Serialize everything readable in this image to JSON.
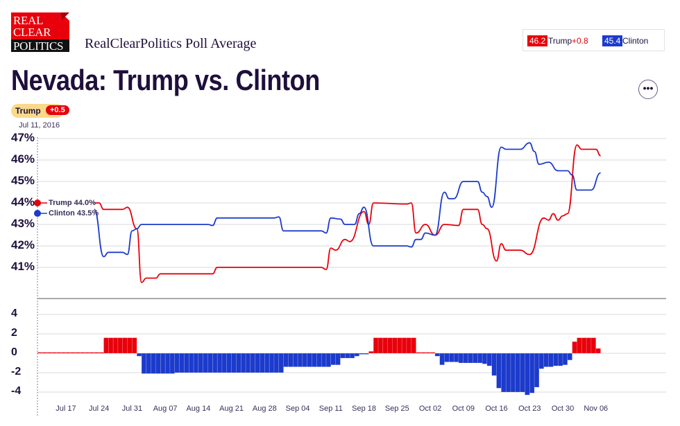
{
  "header": {
    "logo_text": [
      "REAL",
      "CLEAR",
      "POLITICS"
    ],
    "subtitle": "RealClearPolitics Poll Average",
    "title": "Nevada: Trump vs. Clinton",
    "more_label": "•••"
  },
  "legend": {
    "trump": {
      "value": "46.2",
      "name": "Trump",
      "lead": "+0.8"
    },
    "clinton": {
      "value": "45.4",
      "name": "Clinton"
    }
  },
  "start_badge": {
    "leader": "Trump",
    "lead": "+0.5",
    "date": "Jul 11, 2016"
  },
  "start_labels": {
    "trump": "Trump 44.0%",
    "clinton": "Clinton 43.5%"
  },
  "colors": {
    "trump": "#e8000b",
    "clinton": "#1c3bcc",
    "text": "#1e0f3c",
    "grid": "#e6e6e6"
  },
  "chart_data": [
    {
      "type": "line",
      "ylabel": "",
      "yticks": [
        "47%",
        "46%",
        "45%",
        "44%",
        "43%",
        "42%",
        "41%"
      ],
      "ylim": [
        40,
        47
      ],
      "xlim": [
        "2016-07-11",
        "2016-11-07"
      ],
      "grid": true,
      "series": [
        {
          "name": "Trump",
          "color": "#e8000b",
          "points": [
            [
              "2016-07-23",
              44.0
            ],
            [
              "2016-07-24",
              44.0
            ],
            [
              "2016-07-25",
              43.7
            ],
            [
              "2016-07-29",
              43.7
            ],
            [
              "2016-07-30",
              43.8
            ],
            [
              "2016-08-01",
              42.8
            ],
            [
              "2016-08-02",
              40.3
            ],
            [
              "2016-08-03",
              40.5
            ],
            [
              "2016-08-05",
              40.5
            ],
            [
              "2016-08-06",
              40.7
            ],
            [
              "2016-08-17",
              40.7
            ],
            [
              "2016-08-18",
              41.0
            ],
            [
              "2016-09-09",
              41.0
            ],
            [
              "2016-09-10",
              40.9
            ],
            [
              "2016-09-11",
              41.9
            ],
            [
              "2016-09-12",
              41.8
            ],
            [
              "2016-09-14",
              42.3
            ],
            [
              "2016-09-15",
              42.2
            ],
            [
              "2016-09-18",
              43.6
            ],
            [
              "2016-09-19",
              43.0
            ],
            [
              "2016-09-20",
              44.0
            ],
            [
              "2016-09-27",
              43.95
            ],
            [
              "2016-09-28",
              44.0
            ],
            [
              "2016-09-29",
              42.6
            ],
            [
              "2016-10-01",
              43.0
            ],
            [
              "2016-10-03",
              42.5
            ],
            [
              "2016-10-05",
              43.0
            ],
            [
              "2016-10-08",
              42.95
            ],
            [
              "2016-10-09",
              43.7
            ],
            [
              "2016-10-12",
              43.7
            ],
            [
              "2016-10-13",
              43.0
            ],
            [
              "2016-10-14",
              42.8
            ],
            [
              "2016-10-16",
              41.3
            ],
            [
              "2016-10-17",
              42.1
            ],
            [
              "2016-10-18",
              41.8
            ],
            [
              "2016-10-21",
              41.8
            ],
            [
              "2016-10-23",
              41.6
            ],
            [
              "2016-10-26",
              43.3
            ],
            [
              "2016-10-27",
              43.2
            ],
            [
              "2016-10-28",
              43.5
            ],
            [
              "2016-10-29",
              43.2
            ],
            [
              "2016-10-30",
              43.4
            ],
            [
              "2016-10-31",
              43.5
            ],
            [
              "2016-11-02",
              46.7
            ],
            [
              "2016-11-03",
              46.5
            ],
            [
              "2016-11-06",
              46.5
            ],
            [
              "2016-11-07",
              46.2
            ]
          ]
        },
        {
          "name": "Clinton",
          "color": "#1c3bcc",
          "points": [
            [
              "2016-07-23",
              43.7
            ],
            [
              "2016-07-25",
              41.5
            ],
            [
              "2016-07-26",
              41.7
            ],
            [
              "2016-07-29",
              41.7
            ],
            [
              "2016-07-30",
              41.6
            ],
            [
              "2016-07-31",
              42.7
            ],
            [
              "2016-08-01",
              42.8
            ],
            [
              "2016-08-02",
              43.0
            ],
            [
              "2016-08-16",
              43.0
            ],
            [
              "2016-08-17",
              42.95
            ],
            [
              "2016-08-18",
              43.3
            ],
            [
              "2016-08-30",
              43.3
            ],
            [
              "2016-08-31",
              43.35
            ],
            [
              "2016-09-01",
              42.7
            ],
            [
              "2016-09-09",
              42.7
            ],
            [
              "2016-09-10",
              42.6
            ],
            [
              "2016-09-11",
              43.3
            ],
            [
              "2016-09-13",
              43.25
            ],
            [
              "2016-09-14",
              43.0
            ],
            [
              "2016-09-16",
              43.0
            ],
            [
              "2016-09-17",
              43.5
            ],
            [
              "2016-09-18",
              43.8
            ],
            [
              "2016-09-20",
              42.0
            ],
            [
              "2016-09-27",
              42.0
            ],
            [
              "2016-09-28",
              41.95
            ],
            [
              "2016-09-29",
              42.3
            ],
            [
              "2016-09-30",
              42.3
            ],
            [
              "2016-10-01",
              42.6
            ],
            [
              "2016-10-03",
              42.5
            ],
            [
              "2016-10-05",
              44.5
            ],
            [
              "2016-10-06",
              44.2
            ],
            [
              "2016-10-07",
              44.2
            ],
            [
              "2016-10-09",
              45.0
            ],
            [
              "2016-10-12",
              45.0
            ],
            [
              "2016-10-13",
              44.5
            ],
            [
              "2016-10-14",
              44.3
            ],
            [
              "2016-10-15",
              43.8
            ],
            [
              "2016-10-17",
              46.6
            ],
            [
              "2016-10-18",
              46.5
            ],
            [
              "2016-10-21",
              46.5
            ],
            [
              "2016-10-23",
              46.8
            ],
            [
              "2016-10-24",
              46.4
            ],
            [
              "2016-10-25",
              45.8
            ],
            [
              "2016-10-27",
              45.9
            ],
            [
              "2016-10-29",
              45.5
            ],
            [
              "2016-10-31",
              45.5
            ],
            [
              "2016-11-01",
              45.3
            ],
            [
              "2016-11-02",
              44.6
            ],
            [
              "2016-11-05",
              44.6
            ],
            [
              "2016-11-07",
              45.4
            ]
          ]
        }
      ]
    },
    {
      "type": "bar",
      "ylabel": "",
      "yticks": [
        "4",
        "2",
        "0",
        "-2",
        "-4"
      ],
      "ylim": [
        -4.5,
        4.5
      ],
      "xticks": [
        "Jul 17",
        "Jul 24",
        "Jul 31",
        "Aug 07",
        "Aug 14",
        "Aug 21",
        "Aug 28",
        "Sep 04",
        "Sep 11",
        "Sep 18",
        "Sep 25",
        "Oct 02",
        "Oct 09",
        "Oct 16",
        "Oct 23",
        "Oct 30",
        "Nov 06"
      ],
      "xtick_dates": [
        "2016-07-17",
        "2016-07-24",
        "2016-07-31",
        "2016-08-07",
        "2016-08-14",
        "2016-08-21",
        "2016-08-28",
        "2016-09-04",
        "2016-09-11",
        "2016-09-18",
        "2016-09-25",
        "2016-10-02",
        "2016-10-09",
        "2016-10-16",
        "2016-10-23",
        "2016-10-30",
        "2016-11-06"
      ],
      "grid": true,
      "spread_steps": [
        [
          "2016-07-11",
          "2016-07-24",
          0.1
        ],
        [
          "2016-07-25",
          "2016-07-31",
          1.6
        ],
        [
          "2016-08-01",
          "2016-08-01",
          -0.3
        ],
        [
          "2016-08-02",
          "2016-08-08",
          -2.1
        ],
        [
          "2016-08-09",
          "2016-08-31",
          -2.0
        ],
        [
          "2016-09-01",
          "2016-09-10",
          -1.4
        ],
        [
          "2016-09-11",
          "2016-09-12",
          -1.2
        ],
        [
          "2016-09-13",
          "2016-09-15",
          -0.5
        ],
        [
          "2016-09-16",
          "2016-09-16",
          -0.3
        ],
        [
          "2016-09-17",
          "2016-09-18",
          -0.05
        ],
        [
          "2016-09-19",
          "2016-09-19",
          0.2
        ],
        [
          "2016-09-20",
          "2016-09-28",
          1.6
        ],
        [
          "2016-09-29",
          "2016-10-02",
          0.1
        ],
        [
          "2016-10-03",
          "2016-10-03",
          -0.3
        ],
        [
          "2016-10-04",
          "2016-10-04",
          -1.2
        ],
        [
          "2016-10-05",
          "2016-10-07",
          -0.9
        ],
        [
          "2016-10-08",
          "2016-10-12",
          -1.0
        ],
        [
          "2016-10-13",
          "2016-10-13",
          -1.1
        ],
        [
          "2016-10-14",
          "2016-10-14",
          -1.3
        ],
        [
          "2016-10-15",
          "2016-10-15",
          -2.3
        ],
        [
          "2016-10-16",
          "2016-10-16",
          -3.6
        ],
        [
          "2016-10-17",
          "2016-10-21",
          -4.0
        ],
        [
          "2016-10-22",
          "2016-10-22",
          -4.3
        ],
        [
          "2016-10-23",
          "2016-10-23",
          -4.1
        ],
        [
          "2016-10-24",
          "2016-10-24",
          -3.5
        ],
        [
          "2016-10-25",
          "2016-10-25",
          -1.6
        ],
        [
          "2016-10-26",
          "2016-10-27",
          -1.4
        ],
        [
          "2016-10-28",
          "2016-10-29",
          -1.3
        ],
        [
          "2016-10-30",
          "2016-10-30",
          -1.2
        ],
        [
          "2016-10-31",
          "2016-10-31",
          -0.7
        ],
        [
          "2016-11-01",
          "2016-11-01",
          1.2
        ],
        [
          "2016-11-02",
          "2016-11-05",
          1.6
        ],
        [
          "2016-11-06",
          "2016-11-06",
          0.5
        ]
      ]
    }
  ]
}
